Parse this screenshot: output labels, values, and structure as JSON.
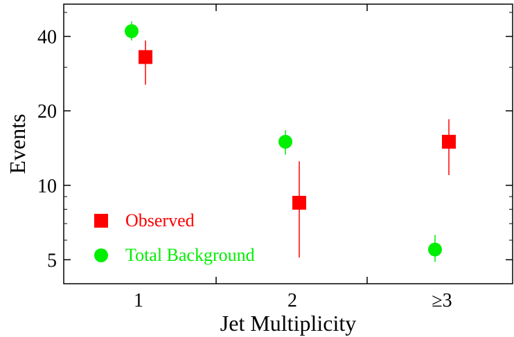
{
  "chart_data": {
    "type": "scatter",
    "xlabel": "Jet Multiplicity",
    "ylabel": "Events",
    "categories": [
      "1",
      "2",
      "≥3"
    ],
    "y_scale": "log",
    "ylim": [
      4,
      54
    ],
    "yticks": [
      5,
      10,
      20,
      40
    ],
    "legend_position": "bottom-left",
    "series": [
      {
        "name": "Observed",
        "marker": "square",
        "color": "#ff0000",
        "values": [
          33,
          8.5,
          15
        ],
        "err_low": [
          25.5,
          5.1,
          11.0
        ],
        "err_high": [
          38.5,
          12.5,
          18.5
        ]
      },
      {
        "name": "Total Background",
        "marker": "circle",
        "color": "#00ee00",
        "values": [
          42,
          15,
          5.5
        ],
        "err_low": [
          38.5,
          13.3,
          4.9
        ],
        "err_high": [
          46,
          16.7,
          6.3
        ]
      }
    ]
  }
}
